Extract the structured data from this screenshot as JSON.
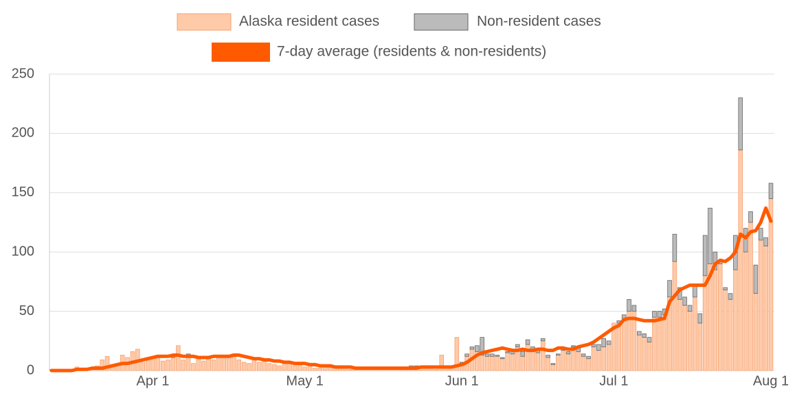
{
  "chart_data": {
    "type": "stacked-bar-line",
    "categories": [
      null,
      null,
      null,
      null,
      null,
      null,
      null,
      null,
      null,
      null,
      null,
      null,
      null,
      null,
      null,
      null,
      null,
      null,
      null,
      null,
      "Apr 1",
      null,
      null,
      null,
      null,
      null,
      null,
      null,
      null,
      null,
      null,
      null,
      null,
      null,
      null,
      null,
      null,
      null,
      null,
      null,
      null,
      null,
      null,
      null,
      null,
      null,
      null,
      null,
      null,
      null,
      "May 1",
      null,
      null,
      null,
      null,
      null,
      null,
      null,
      null,
      null,
      null,
      null,
      null,
      null,
      null,
      null,
      null,
      null,
      null,
      null,
      null,
      null,
      null,
      null,
      null,
      null,
      null,
      null,
      null,
      null,
      null,
      "Jun 1",
      null,
      null,
      null,
      null,
      null,
      null,
      null,
      null,
      null,
      null,
      null,
      null,
      null,
      null,
      null,
      null,
      null,
      null,
      null,
      null,
      null,
      null,
      null,
      null,
      null,
      null,
      null,
      null,
      null,
      "Jul 1",
      null,
      null,
      null,
      null,
      null,
      null,
      null,
      null,
      null,
      null,
      null,
      null,
      null,
      null,
      null,
      null,
      null,
      null,
      null,
      null,
      null,
      null,
      null,
      null,
      null,
      null,
      null,
      null,
      null,
      null,
      "Aug 1"
    ],
    "series": [
      {
        "name": "Alaska resident cases",
        "color": "#ffcaa8",
        "stroke": "#f5a070",
        "kind": "bar",
        "values": [
          1,
          0,
          0,
          0,
          1,
          3,
          1,
          2,
          2,
          4,
          9,
          12,
          5,
          6,
          13,
          11,
          16,
          18,
          7,
          9,
          11,
          12,
          8,
          9,
          11,
          21,
          9,
          13,
          6,
          10,
          8,
          10,
          9,
          12,
          11,
          12,
          13,
          9,
          7,
          6,
          9,
          7,
          8,
          6,
          5,
          4,
          6,
          7,
          4,
          5,
          3,
          4,
          2,
          2,
          5,
          3,
          3,
          2,
          2,
          1,
          1,
          2,
          3,
          2,
          1,
          2,
          1,
          1,
          1,
          2,
          1,
          3,
          2,
          3,
          3,
          2,
          1,
          13,
          2,
          2,
          28,
          6,
          12,
          18,
          16,
          13,
          12,
          12,
          12,
          10,
          15,
          14,
          20,
          12,
          22,
          16,
          15,
          25,
          11,
          5,
          13,
          17,
          14,
          20,
          16,
          12,
          10,
          20,
          17,
          20,
          22,
          40,
          40,
          42,
          50,
          50,
          30,
          28,
          24,
          45,
          45,
          47,
          62,
          92,
          60,
          55,
          50,
          62,
          40,
          80,
          90,
          85,
          90,
          68,
          60,
          85,
          186,
          100,
          125,
          65,
          110,
          105,
          145
        ]
      },
      {
        "name": "Non-resident cases",
        "color": "#bbbbbb",
        "stroke": "#666666",
        "kind": "bar",
        "values": [
          0,
          0,
          0,
          0,
          0,
          0,
          0,
          0,
          0,
          0,
          0,
          0,
          0,
          0,
          0,
          0,
          0,
          0,
          0,
          0,
          0,
          1,
          0,
          0,
          1,
          0,
          0,
          1,
          0,
          0,
          0,
          1,
          0,
          1,
          0,
          1,
          1,
          0,
          0,
          0,
          0,
          0,
          0,
          0,
          0,
          0,
          0,
          0,
          0,
          0,
          0,
          0,
          0,
          0,
          0,
          0,
          0,
          0,
          0,
          0,
          0,
          0,
          0,
          0,
          1,
          0,
          0,
          0,
          0,
          0,
          0,
          1,
          2,
          0,
          0,
          1,
          0,
          0,
          1,
          0,
          0,
          1,
          2,
          2,
          5,
          15,
          2,
          2,
          1,
          1,
          1,
          3,
          2,
          4,
          4,
          4,
          2,
          2,
          2,
          1,
          1,
          2,
          2,
          1,
          3,
          2,
          2,
          2,
          5,
          7,
          3,
          0,
          2,
          5,
          10,
          5,
          3,
          3,
          4,
          5,
          5,
          5,
          14,
          23,
          10,
          7,
          5,
          10,
          8,
          34,
          47,
          15,
          2,
          2,
          5,
          29,
          44,
          20,
          9,
          24,
          10,
          7,
          13
        ]
      },
      {
        "name": "7-day average (residents & non-residents)",
        "color": "#ff5a00",
        "kind": "line",
        "values": [
          0,
          0,
          0,
          0,
          0,
          1,
          1,
          1,
          2,
          2,
          2,
          3,
          4,
          5,
          6,
          6,
          7,
          8,
          9,
          10,
          11,
          12,
          12,
          12,
          13,
          13,
          12,
          12,
          12,
          11,
          11,
          11,
          12,
          12,
          12,
          12,
          13,
          13,
          12,
          11,
          10,
          10,
          9,
          9,
          8,
          8,
          7,
          7,
          6,
          6,
          6,
          5,
          5,
          4,
          4,
          4,
          3,
          3,
          3,
          3,
          2,
          2,
          2,
          2,
          2,
          2,
          2,
          2,
          2,
          2,
          2,
          2,
          2,
          3,
          3,
          3,
          3,
          3,
          3,
          3,
          4,
          5,
          7,
          10,
          13,
          15,
          16,
          17,
          18,
          19,
          18,
          17,
          17,
          18,
          17,
          17,
          18,
          18,
          17,
          17,
          19,
          19,
          18,
          18,
          20,
          21,
          22,
          24,
          27,
          30,
          33,
          36,
          38,
          43,
          44,
          44,
          43,
          42,
          42,
          42,
          43,
          44,
          58,
          63,
          68,
          70,
          72,
          72,
          72,
          72,
          80,
          90,
          93,
          92,
          95,
          100,
          115,
          112,
          117,
          118,
          125,
          137,
          126
        ]
      }
    ],
    "ylim": [
      0,
      250
    ],
    "yticks": [
      0,
      50,
      100,
      150,
      200,
      250
    ],
    "grid": true
  }
}
